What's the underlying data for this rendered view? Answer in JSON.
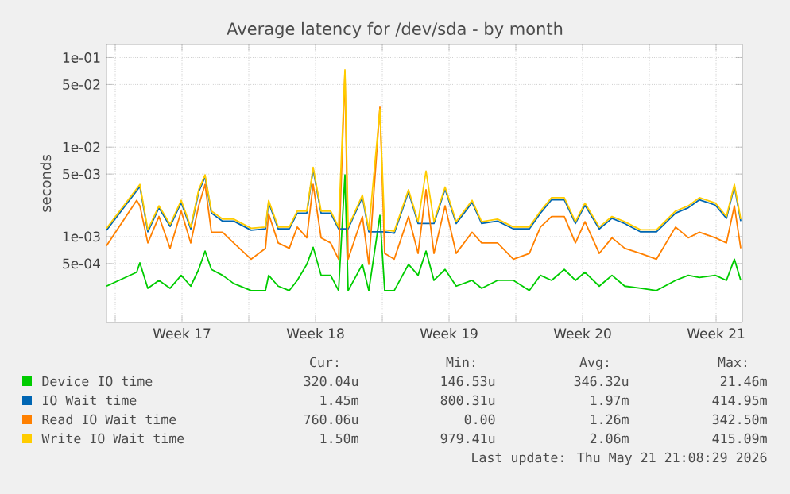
{
  "chart_data": {
    "type": "line",
    "title": "Average latency for /dev/sda - by month",
    "ylabel": "seconds",
    "log": "y",
    "grid": true,
    "legend": "bottom",
    "xlim": [
      "2026-04-18T13:00",
      "2026-05-21T21:00"
    ],
    "xticks": [
      {
        "value": "2026-04-19T00:00",
        "label": null
      },
      {
        "value": "2026-04-22T12:00",
        "label": "Week 17"
      },
      {
        "value": "2026-04-26T00:00",
        "label": null
      },
      {
        "value": "2026-04-29T12:00",
        "label": "Week 18"
      },
      {
        "value": "2026-05-03T00:00",
        "label": null
      },
      {
        "value": "2026-05-06T12:00",
        "label": "Week 19"
      },
      {
        "value": "2026-05-10T00:00",
        "label": null
      },
      {
        "value": "2026-05-13T12:00",
        "label": "Week 20"
      },
      {
        "value": "2026-05-17T00:00",
        "label": null
      },
      {
        "value": "2026-05-20T12:00",
        "label": "Week 21"
      }
    ],
    "ylim": [
      0.00011,
      0.14
    ],
    "yticks": [
      {
        "value": 0.1,
        "label": "1e-01"
      },
      {
        "value": 0.05,
        "label": "5e-02"
      },
      {
        "value": 0.01,
        "label": "1e-02"
      },
      {
        "value": 0.005,
        "label": "5e-03"
      },
      {
        "value": 0.001,
        "label": "1e-03"
      },
      {
        "value": 0.0005,
        "label": "5e-04"
      }
    ],
    "x": [
      "2026-04-18T13:00",
      "2026-04-20T03:00",
      "2026-04-20T07:00",
      "2026-04-20T17:00",
      "2026-04-21T07:00",
      "2026-04-21T21:00",
      "2026-04-22T11:00",
      "2026-04-22T23:00",
      "2026-04-23T09:00",
      "2026-04-23T17:00",
      "2026-04-24T01:00",
      "2026-04-24T15:00",
      "2026-04-25T05:00",
      "2026-04-26T03:00",
      "2026-04-26T21:00",
      "2026-04-27T01:00",
      "2026-04-27T13:00",
      "2026-04-28T03:00",
      "2026-04-28T13:00",
      "2026-04-29T01:00",
      "2026-04-29T09:00",
      "2026-04-29T19:00",
      "2026-04-30T07:00",
      "2026-04-30T17:00",
      "2026-05-01T01:00",
      "2026-05-01T05:00",
      "2026-05-01T23:00",
      "2026-05-02T07:00",
      "2026-05-02T21:00",
      "2026-05-03T03:00",
      "2026-05-03T15:00",
      "2026-05-04T09:00",
      "2026-05-04T21:00",
      "2026-05-05T07:00",
      "2026-05-05T17:00",
      "2026-05-06T07:00",
      "2026-05-06T21:00",
      "2026-05-07T17:00",
      "2026-05-08T05:00",
      "2026-05-09T01:00",
      "2026-05-09T21:00",
      "2026-05-10T17:00",
      "2026-05-11T07:00",
      "2026-05-11T21:00",
      "2026-05-12T13:00",
      "2026-05-13T03:00",
      "2026-05-13T15:00",
      "2026-05-14T09:00",
      "2026-05-15T01:00",
      "2026-05-15T17:00",
      "2026-05-16T13:00",
      "2026-05-17T09:00",
      "2026-05-18T09:00",
      "2026-05-19T01:00",
      "2026-05-19T15:00",
      "2026-05-20T11:00",
      "2026-05-21T01:00",
      "2026-05-21T11:00",
      "2026-05-21T19:00"
    ],
    "series": [
      {
        "name": "Device IO time",
        "color": "#00cc00",
        "values": [
          0.00028,
          0.0004,
          0.00051,
          0.000265,
          0.000325,
          0.000265,
          0.00037,
          0.00028,
          0.00043,
          0.00069,
          0.00043,
          0.00037,
          0.0003,
          0.00025,
          0.00025,
          0.00037,
          0.00028,
          0.00025,
          0.000325,
          0.00049,
          0.00076,
          0.00037,
          0.00037,
          0.00025,
          0.0049,
          0.00025,
          0.00049,
          0.00025,
          0.00173,
          0.00025,
          0.00025,
          0.00049,
          0.00037,
          0.00069,
          0.000325,
          0.00043,
          0.00028,
          0.000325,
          0.000265,
          0.000325,
          0.000325,
          0.00025,
          0.00037,
          0.000325,
          0.00043,
          0.000325,
          0.0004,
          0.00028,
          0.00037,
          0.00028,
          0.000265,
          0.00025,
          0.000325,
          0.00037,
          0.00035,
          0.00037,
          0.000325,
          0.00056,
          0.000325
        ]
      },
      {
        "name": "IO Wait time",
        "color": "#0066b3",
        "values": [
          0.00118,
          0.00326,
          0.00364,
          0.00113,
          0.0021,
          0.0013,
          0.00241,
          0.00122,
          0.00317,
          0.00466,
          0.00183,
          0.00149,
          0.00149,
          0.00118,
          0.00122,
          0.00241,
          0.00122,
          0.00122,
          0.00183,
          0.00183,
          0.00564,
          0.00183,
          0.00183,
          0.00122,
          null,
          0.00122,
          0.00276,
          0.00113,
          null,
          0.00113,
          0.00109,
          0.00317,
          0.0014,
          null,
          0.0014,
          0.0034,
          0.0014,
          0.00241,
          0.0014,
          0.00149,
          0.00122,
          0.00122,
          0.00183,
          0.00258,
          0.00258,
          0.0014,
          0.00225,
          0.00122,
          0.0016,
          0.0014,
          0.00113,
          0.00113,
          0.00183,
          0.0021,
          0.00258,
          0.00225,
          0.0016,
          0.00364,
          0.00149
        ]
      },
      {
        "name": "Read IO Wait time",
        "color": "#ff8000",
        "values": [
          0.00079,
          0.00254,
          0.00221,
          0.00085,
          0.00168,
          0.00074,
          0.00193,
          0.00085,
          0.00221,
          0.00383,
          0.00112,
          0.00112,
          0.00085,
          0.00056,
          0.00074,
          0.0018,
          0.00085,
          0.00074,
          0.00128,
          0.00097,
          0.00383,
          0.00097,
          0.00085,
          0.00056,
          0.0681,
          0.00056,
          0.00168,
          0.00049,
          0.0279,
          0.00065,
          0.00056,
          0.00168,
          0.00065,
          0.00334,
          0.00065,
          0.00221,
          0.00065,
          0.00112,
          0.00085,
          0.00085,
          0.00056,
          0.00065,
          0.00128,
          0.00168,
          0.00168,
          0.00085,
          0.00147,
          0.00065,
          0.00097,
          0.00074,
          0.00065,
          0.00056,
          0.00128,
          0.00097,
          0.00112,
          0.00097,
          0.00085,
          0.00221,
          0.00074
        ]
      },
      {
        "name": "Write IO Wait time",
        "color": "#ffcc00",
        "values": [
          0.00124,
          0.00343,
          0.00383,
          0.00119,
          0.00221,
          0.00137,
          0.00254,
          0.00128,
          0.00334,
          0.0049,
          0.00193,
          0.00157,
          0.00157,
          0.00124,
          0.00128,
          0.00254,
          0.00128,
          0.00128,
          0.00193,
          0.00193,
          0.00594,
          0.00193,
          0.00193,
          0.00128,
          0.0729,
          0.00128,
          0.00291,
          0.00119,
          0.0265,
          0.00119,
          0.00115,
          0.00334,
          0.00147,
          0.0054,
          0.00147,
          0.00358,
          0.00147,
          0.00254,
          0.00147,
          0.00157,
          0.00128,
          0.00128,
          0.00193,
          0.00272,
          0.00272,
          0.00147,
          0.00237,
          0.00128,
          0.00168,
          0.00147,
          0.00119,
          0.00119,
          0.00193,
          0.00221,
          0.00272,
          0.00237,
          0.00168,
          0.00383,
          0.00157
        ]
      }
    ],
    "annotations": [
      "Cur:",
      "Min:",
      "Avg:",
      "Max:",
      "320.04u",
      "146.53u",
      "346.32u",
      "21.46m",
      "1.45m",
      "800.31u",
      "1.97m",
      "414.95m",
      "760.06u",
      "0.00",
      "1.26m",
      "342.50m",
      "1.50m",
      "979.41u",
      "2.06m",
      "415.09m",
      "Last update: Thu May 21 21:08:29 2026"
    ]
  }
}
